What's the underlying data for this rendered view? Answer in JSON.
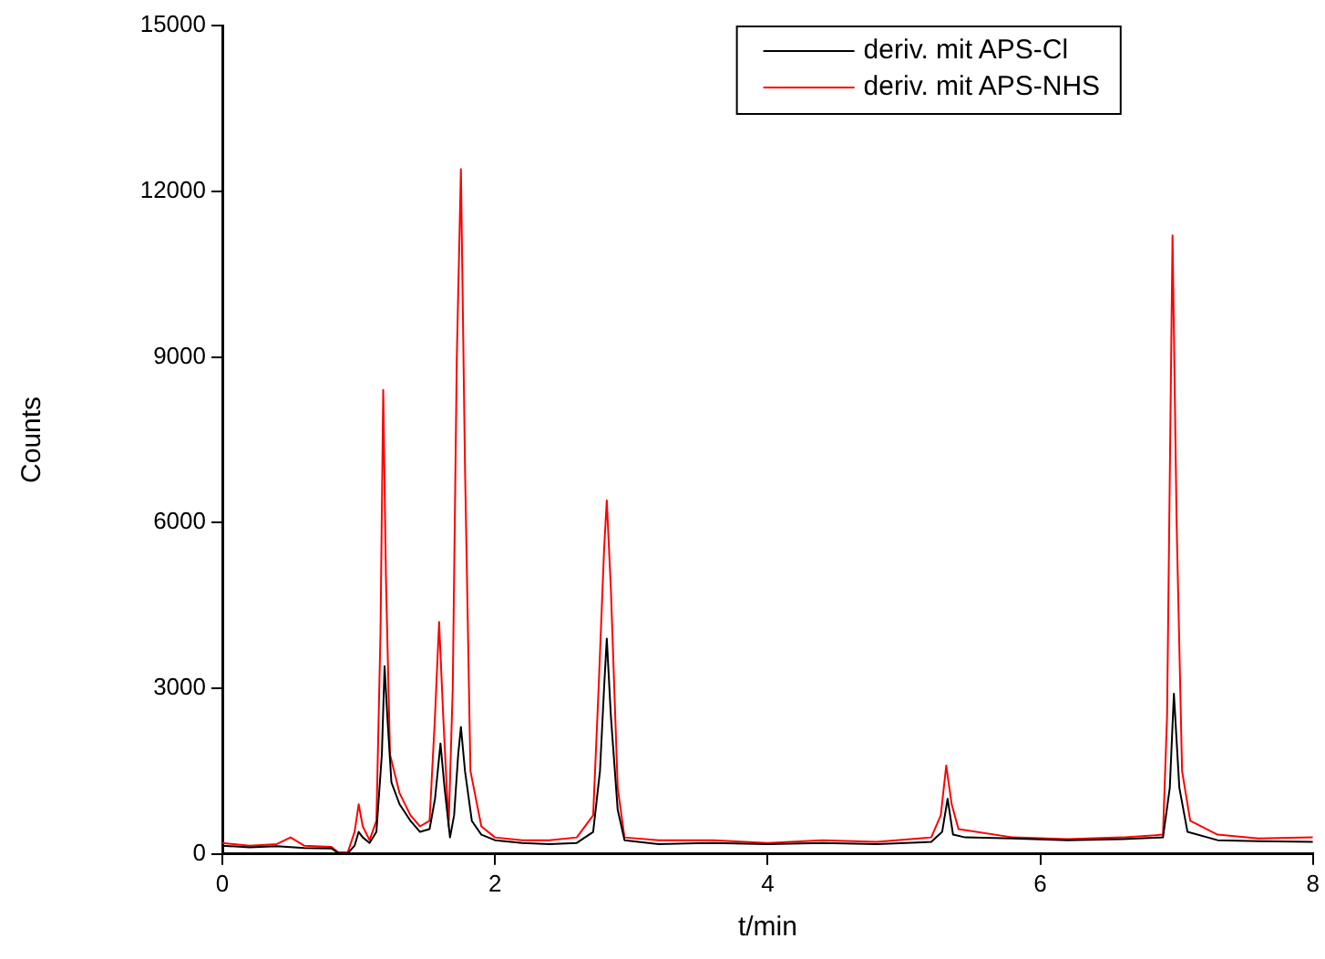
{
  "chart_data": {
    "type": "line",
    "xlabel": "t/min",
    "ylabel": "Counts",
    "xlim": [
      0,
      8
    ],
    "xticks": [
      0,
      2,
      4,
      6,
      8
    ],
    "ylim": [
      0,
      15000
    ],
    "yticks": [
      0,
      3000,
      6000,
      9000,
      12000,
      15000
    ],
    "grid": false,
    "legend": "top right",
    "marker": "none",
    "line_style": "solid",
    "series": [
      {
        "name": "deriv. mit APS-Cl",
        "color": "#000000",
        "x": [
          0,
          0.2,
          0.4,
          0.6,
          0.8,
          0.85,
          0.92,
          0.97,
          1.0,
          1.03,
          1.08,
          1.13,
          1.17,
          1.19,
          1.21,
          1.24,
          1.3,
          1.38,
          1.45,
          1.52,
          1.56,
          1.6,
          1.63,
          1.67,
          1.7,
          1.73,
          1.75,
          1.78,
          1.83,
          1.9,
          2.0,
          2.2,
          2.4,
          2.6,
          2.72,
          2.77,
          2.8,
          2.82,
          2.85,
          2.9,
          2.95,
          3.2,
          3.6,
          4.0,
          4.4,
          4.8,
          5.2,
          5.28,
          5.32,
          5.36,
          5.45,
          5.8,
          6.2,
          6.6,
          6.9,
          6.95,
          6.98,
          7.02,
          7.08,
          7.3,
          7.6,
          8.0
        ],
        "values": [
          150,
          120,
          140,
          110,
          100,
          20,
          10,
          150,
          400,
          300,
          200,
          400,
          1800,
          3400,
          2500,
          1300,
          900,
          600,
          400,
          450,
          1000,
          2000,
          1200,
          300,
          700,
          1800,
          2300,
          1500,
          600,
          350,
          250,
          200,
          180,
          200,
          400,
          1500,
          3000,
          3900,
          2500,
          800,
          250,
          180,
          200,
          180,
          200,
          180,
          220,
          400,
          1000,
          350,
          300,
          280,
          250,
          270,
          300,
          1200,
          2900,
          1200,
          400,
          250,
          230,
          220
        ]
      },
      {
        "name": "deriv. mit APS-NHS",
        "color": "#ff0000",
        "x": [
          0,
          0.2,
          0.4,
          0.5,
          0.6,
          0.8,
          0.85,
          0.92,
          0.97,
          1.0,
          1.03,
          1.08,
          1.13,
          1.16,
          1.18,
          1.2,
          1.23,
          1.3,
          1.38,
          1.45,
          1.52,
          1.56,
          1.59,
          1.62,
          1.66,
          1.69,
          1.72,
          1.75,
          1.78,
          1.82,
          1.9,
          2.0,
          2.2,
          2.4,
          2.6,
          2.72,
          2.76,
          2.8,
          2.82,
          2.85,
          2.9,
          2.95,
          3.2,
          3.6,
          4.0,
          4.4,
          4.8,
          5.2,
          5.27,
          5.31,
          5.35,
          5.4,
          5.8,
          6.2,
          6.6,
          6.9,
          6.93,
          6.97,
          7.0,
          7.04,
          7.1,
          7.3,
          7.6,
          8.0
        ],
        "values": [
          200,
          150,
          180,
          300,
          150,
          130,
          30,
          30,
          400,
          900,
          500,
          250,
          600,
          4000,
          8400,
          5000,
          1800,
          1100,
          700,
          500,
          600,
          2500,
          4200,
          2500,
          500,
          3000,
          9000,
          12400,
          7000,
          1500,
          500,
          300,
          250,
          250,
          300,
          700,
          3000,
          5500,
          6400,
          4800,
          1200,
          300,
          250,
          250,
          200,
          250,
          220,
          300,
          700,
          1600,
          900,
          450,
          300,
          270,
          300,
          350,
          2500,
          11200,
          6000,
          1500,
          600,
          350,
          280,
          300
        ]
      }
    ]
  }
}
